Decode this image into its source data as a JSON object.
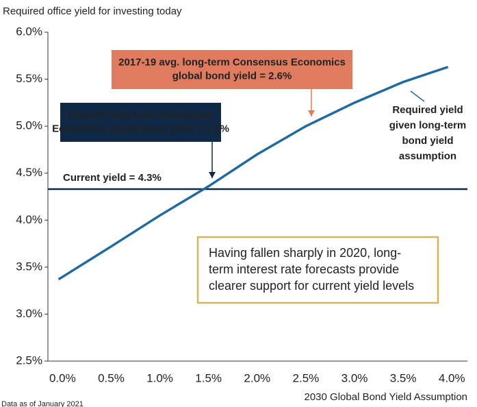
{
  "chart_data": {
    "type": "line",
    "y_axis_label": "Required office yield for investing today",
    "x_axis_label": "2030 Global Bond Yield Assumption",
    "source": "Data as of January 2021",
    "xlim": [
      -0.15,
      4.16
    ],
    "ylim": [
      2.5,
      6.0
    ],
    "xticks": [
      {
        "value": 0,
        "label": "0.0%"
      },
      {
        "value": 0.5,
        "label": "0.5%"
      },
      {
        "value": 1,
        "label": "1.0%"
      },
      {
        "value": 1.5,
        "label": "1.5%"
      },
      {
        "value": 2,
        "label": "2.0%"
      },
      {
        "value": 2.5,
        "label": "2.5%"
      },
      {
        "value": 3,
        "label": "3.0%"
      },
      {
        "value": 3.5,
        "label": "3.5%"
      },
      {
        "value": 4,
        "label": "4.0%"
      }
    ],
    "yticks": [
      {
        "value": 2.5,
        "label": "2.5%"
      },
      {
        "value": 3,
        "label": "3.0%"
      },
      {
        "value": 3.5,
        "label": "3.5%"
      },
      {
        "value": 4,
        "label": "4.0%"
      },
      {
        "value": 4.5,
        "label": "4.5%"
      },
      {
        "value": 5,
        "label": "5.0%"
      },
      {
        "value": 5.5,
        "label": "5.5%"
      },
      {
        "value": 6,
        "label": "6.0%"
      }
    ],
    "series": [
      {
        "name": [
          "Required yield",
          "given long-term",
          "bond yield",
          "assumption"
        ],
        "color": "#1f6aa3",
        "x": [
          -0.04,
          0.5,
          1.0,
          1.5,
          2.0,
          2.5,
          3.0,
          3.5,
          3.96
        ],
        "values": [
          3.37,
          3.72,
          4.05,
          4.36,
          4.7,
          5.0,
          5.25,
          5.47,
          5.63
        ]
      }
    ],
    "reference_line": {
      "label": "Current yield = 4.3%",
      "value": 4.33,
      "color": "#0e2846"
    },
    "annotations": [
      {
        "lines": [
          "2017-19 avg. long-term Consensus Economics",
          "global bond yield = 2.6%"
        ],
        "color": "#e07b5f"
      },
      {
        "lines": [
          "Current long-term Consensus",
          "Economics global bond yield = 1.6%"
        ],
        "color": "#0e2846"
      },
      {
        "lines": [
          "Having fallen sharply in 2020, long-",
          "term interest rate forecasts provide",
          "clearer support for current yield levels"
        ],
        "color": "#d4b65a"
      }
    ]
  }
}
